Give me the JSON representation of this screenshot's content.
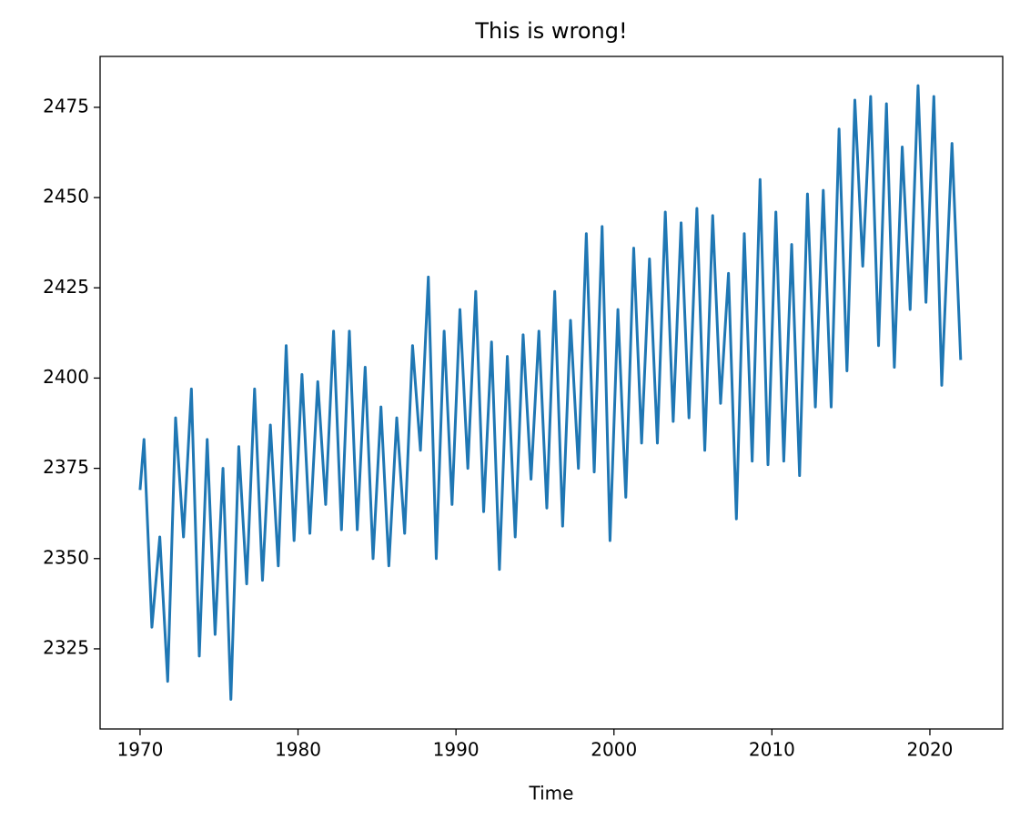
{
  "chart_data": {
    "type": "line",
    "title": "This is wrong!",
    "x_label": "Time",
    "color": "#1f77b4",
    "x": [
      1970.0,
      1970.25,
      1970.75,
      1971.25,
      1971.75,
      1972.25,
      1972.75,
      1973.25,
      1973.75,
      1974.25,
      1974.75,
      1975.25,
      1975.75,
      1976.25,
      1976.75,
      1977.25,
      1977.75,
      1978.25,
      1978.75,
      1979.25,
      1979.75,
      1980.25,
      1980.75,
      1981.25,
      1981.75,
      1982.25,
      1982.75,
      1983.25,
      1983.75,
      1984.25,
      1984.75,
      1985.25,
      1985.75,
      1986.25,
      1986.75,
      1987.25,
      1987.75,
      1988.25,
      1988.75,
      1989.25,
      1989.75,
      1990.25,
      1990.75,
      1991.25,
      1991.75,
      1992.25,
      1992.75,
      1993.25,
      1993.75,
      1994.25,
      1994.75,
      1995.25,
      1995.75,
      1996.25,
      1996.75,
      1997.25,
      1997.75,
      1998.25,
      1998.75,
      1999.25,
      1999.75,
      2000.25,
      2000.75,
      2001.25,
      2001.75,
      2002.25,
      2002.75,
      2003.25,
      2003.75,
      2004.25,
      2004.75,
      2005.25,
      2005.75,
      2006.25,
      2006.75,
      2007.25,
      2007.75,
      2008.25,
      2008.75,
      2009.25,
      2009.75,
      2010.25,
      2010.75,
      2011.25,
      2011.75,
      2012.25,
      2012.75,
      2013.25,
      2013.75,
      2014.25,
      2014.75,
      2015.25,
      2015.75,
      2016.25,
      2016.75,
      2017.25,
      2017.75,
      2018.25,
      2018.75,
      2019.25,
      2019.75,
      2020.25,
      2020.75,
      2021.4,
      2021.95
    ],
    "values": [
      2369,
      2383,
      2331,
      2356,
      2316,
      2389,
      2356,
      2397,
      2323,
      2383,
      2329,
      2375,
      2311,
      2381,
      2343,
      2397,
      2344,
      2387,
      2348,
      2409,
      2355,
      2401,
      2357,
      2399,
      2365,
      2413,
      2358,
      2413,
      2358,
      2403,
      2350,
      2392,
      2348,
      2389,
      2357,
      2409,
      2380,
      2428,
      2350,
      2413,
      2365,
      2419,
      2375,
      2424,
      2363,
      2410,
      2347,
      2406,
      2356,
      2412,
      2372,
      2413,
      2364,
      2424,
      2359,
      2416,
      2375,
      2440,
      2374,
      2442,
      2355,
      2419,
      2367,
      2436,
      2382,
      2433,
      2382,
      2446,
      2388,
      2443,
      2389,
      2447,
      2380,
      2445,
      2393,
      2429,
      2361,
      2440,
      2377,
      2455,
      2376,
      2446,
      2377,
      2437,
      2373,
      2451,
      2392,
      2452,
      2392,
      2469,
      2402,
      2477,
      2431,
      2478,
      2409,
      2476,
      2403,
      2464,
      2419,
      2481,
      2421,
      2478,
      2398,
      2465,
      2405
    ],
    "xlim": [
      1967.47,
      2024.61
    ],
    "xticks": [
      1970,
      1980,
      1990,
      2000,
      2010,
      2020
    ],
    "ylim": [
      2302.8,
      2489.1
    ],
    "yticks": [
      2325,
      2350,
      2375,
      2400,
      2425,
      2450,
      2475
    ]
  }
}
